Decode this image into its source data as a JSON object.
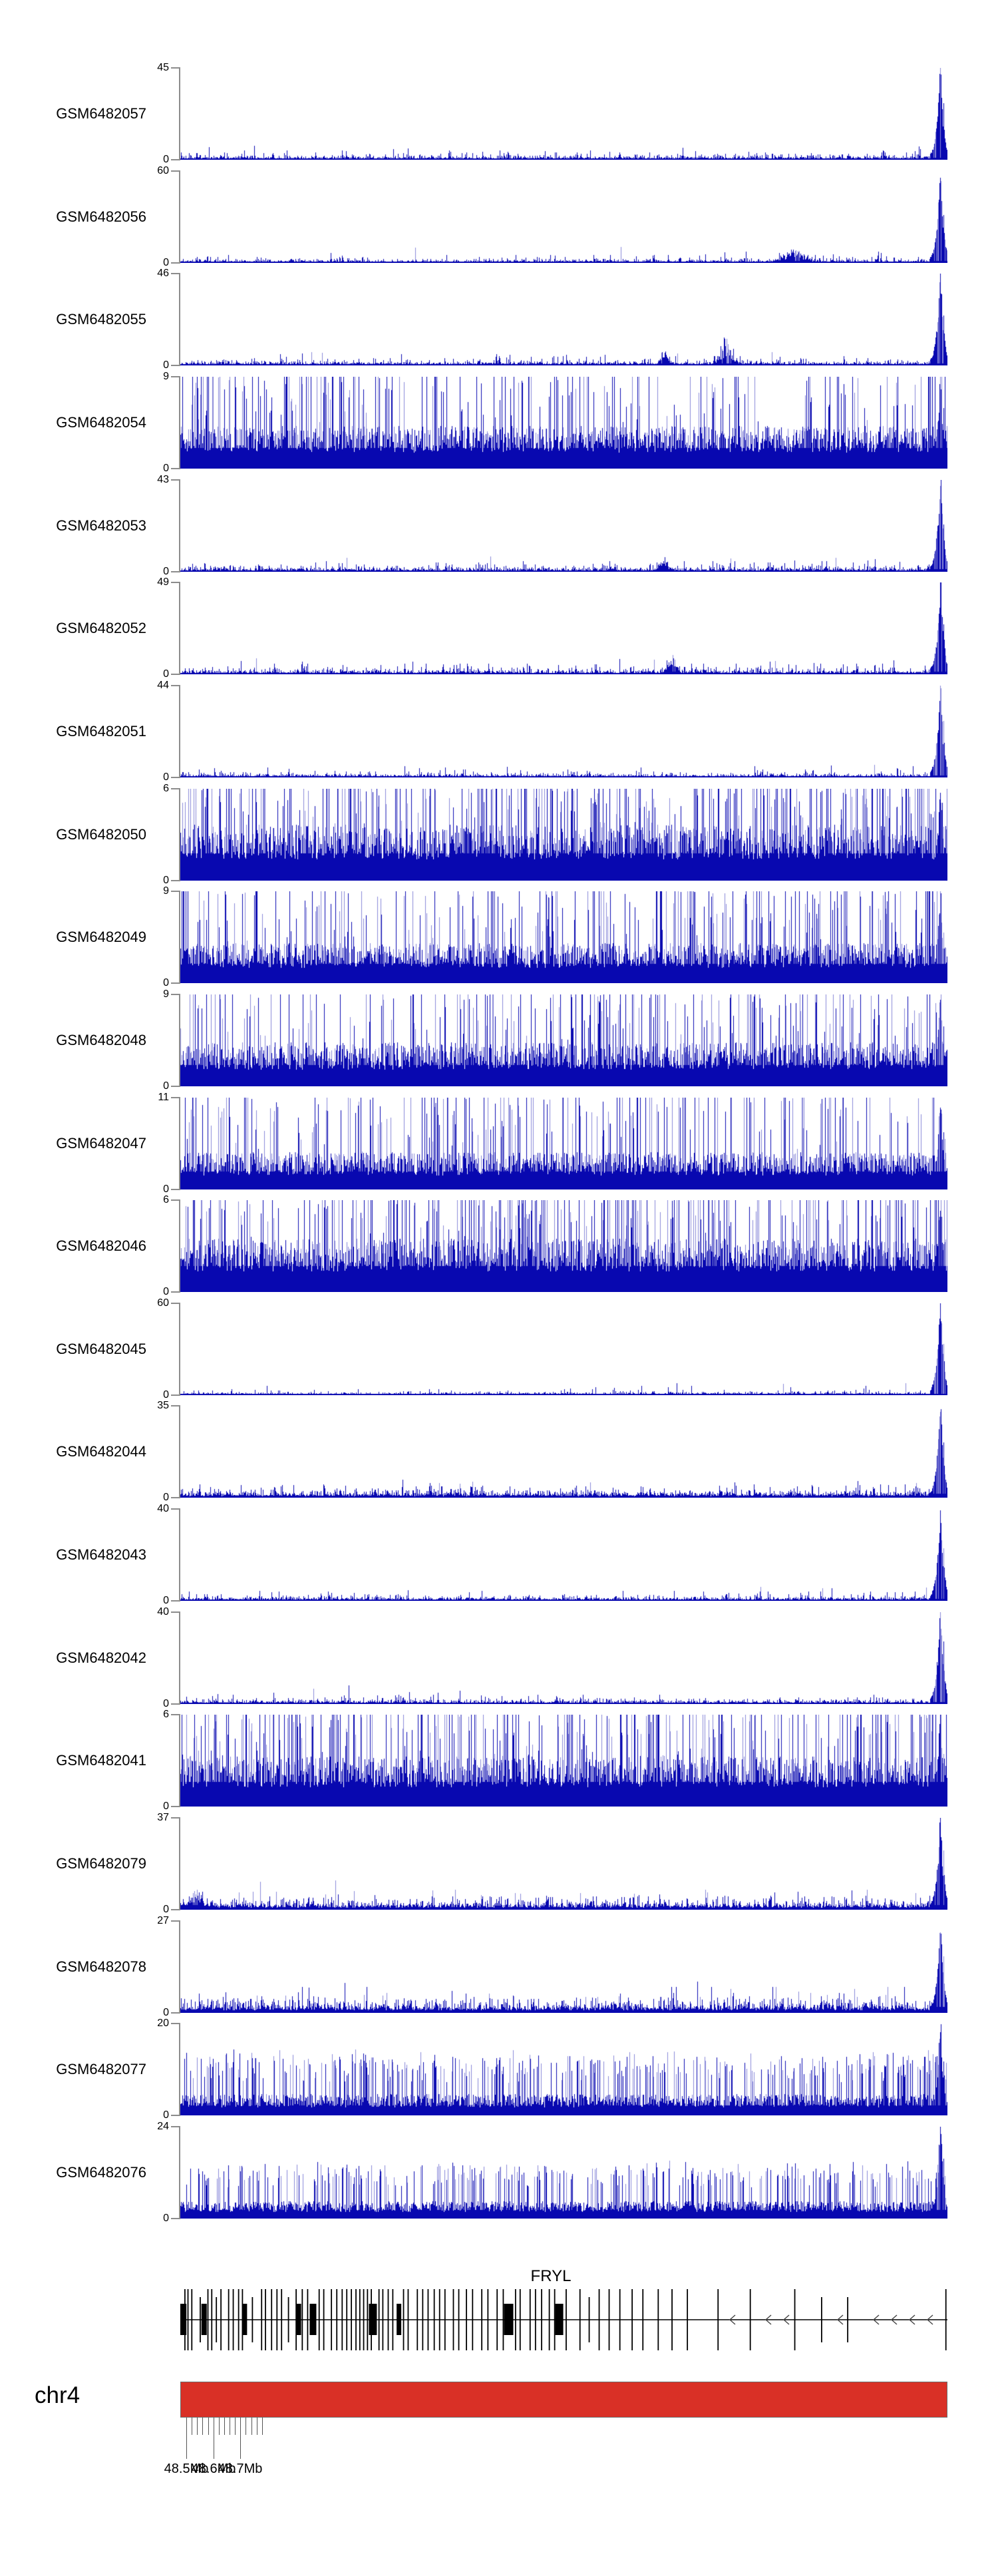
{
  "chart_data": {
    "type": "genome-coverage-tracks",
    "title": "",
    "region": {
      "chrom": "chr4",
      "start_mb": 48.49,
      "end_mb": 48.785
    },
    "y_zero_label": "0",
    "colors": {
      "coverage_dark": "#0808b0",
      "coverage_light": "#8888d8",
      "axis_gray": "#8c8c8c",
      "ideogram_red": "#d93026",
      "tick_color": "#555555",
      "gene_black": "#000000"
    },
    "tracks": [
      {
        "label": "GSM6482057",
        "ymax": 45,
        "pattern": "peak",
        "base": 0.03,
        "bumps": []
      },
      {
        "label": "GSM6482056",
        "ymax": 60,
        "pattern": "peak",
        "base": 0.025,
        "bumps": [
          [
            0.8,
            0.1,
            14
          ]
        ]
      },
      {
        "label": "GSM6482055",
        "ymax": 46,
        "pattern": "peak",
        "base": 0.03,
        "bumps": [
          [
            0.63,
            0.13,
            5
          ],
          [
            0.71,
            0.22,
            7
          ]
        ]
      },
      {
        "label": "GSM6482054",
        "ymax": 9,
        "pattern": "dense",
        "mean": 0.32,
        "spike_p": 0.2,
        "spike_max": 1.0
      },
      {
        "label": "GSM6482053",
        "ymax": 43,
        "pattern": "peak",
        "base": 0.035,
        "bumps": [
          [
            0.63,
            0.1,
            6
          ]
        ]
      },
      {
        "label": "GSM6482052",
        "ymax": 49,
        "pattern": "peak",
        "base": 0.035,
        "bumps": [
          [
            0.64,
            0.12,
            6
          ]
        ]
      },
      {
        "label": "GSM6482051",
        "ymax": 44,
        "pattern": "peak",
        "base": 0.025,
        "bumps": []
      },
      {
        "label": "GSM6482050",
        "ymax": 6,
        "pattern": "dense",
        "mean": 0.42,
        "spike_p": 0.25,
        "spike_max": 1.0
      },
      {
        "label": "GSM6482049",
        "ymax": 9,
        "pattern": "dense",
        "mean": 0.3,
        "spike_p": 0.2,
        "spike_max": 1.0
      },
      {
        "label": "GSM6482048",
        "ymax": 9,
        "pattern": "dense",
        "mean": 0.33,
        "spike_p": 0.2,
        "spike_max": 1.0
      },
      {
        "label": "GSM6482047",
        "ymax": 11,
        "pattern": "dense",
        "mean": 0.28,
        "spike_p": 0.18,
        "spike_max": 1.0
      },
      {
        "label": "GSM6482046",
        "ymax": 6,
        "pattern": "dense",
        "mean": 0.4,
        "spike_p": 0.25,
        "spike_max": 1.0
      },
      {
        "label": "GSM6482045",
        "ymax": 60,
        "pattern": "peak",
        "base": 0.02,
        "bumps": []
      },
      {
        "label": "GSM6482044",
        "ymax": 35,
        "pattern": "peak",
        "base": 0.05,
        "bumps": []
      },
      {
        "label": "GSM6482043",
        "ymax": 40,
        "pattern": "peak",
        "base": 0.03,
        "bumps": []
      },
      {
        "label": "GSM6482042",
        "ymax": 40,
        "pattern": "peak",
        "base": 0.03,
        "bumps": []
      },
      {
        "label": "GSM6482041",
        "ymax": 6,
        "pattern": "dense",
        "mean": 0.38,
        "spike_p": 0.25,
        "spike_max": 1.0
      },
      {
        "label": "GSM6482079",
        "ymax": 37,
        "pattern": "peak",
        "base": 0.065,
        "bumps": [
          [
            0.02,
            0.12,
            8
          ]
        ]
      },
      {
        "label": "GSM6482078",
        "ymax": 27,
        "pattern": "peak",
        "base": 0.085,
        "bumps": []
      },
      {
        "label": "GSM6482077",
        "ymax": 20,
        "pattern": "mid",
        "mean": 0.16,
        "spike_p": 0.3,
        "spike_max": 0.5
      },
      {
        "label": "GSM6482076",
        "ymax": 24,
        "pattern": "mid",
        "mean": 0.13,
        "spike_p": 0.25,
        "spike_max": 0.45
      }
    ],
    "gene": {
      "name": "FRYL",
      "strand": "-",
      "exon_boxes": [
        {
          "f": 0.001,
          "w": 16
        },
        {
          "f": 0.031,
          "w": 8
        },
        {
          "f": 0.084,
          "w": 7
        },
        {
          "f": 0.154,
          "w": 8
        },
        {
          "f": 0.173,
          "w": 10
        },
        {
          "f": 0.251,
          "w": 12
        },
        {
          "f": 0.285,
          "w": 7
        },
        {
          "f": 0.428,
          "w": 14
        },
        {
          "f": 0.494,
          "w": 12
        }
      ],
      "exon_lines": [
        {
          "f": 0.006,
          "t": "L"
        },
        {
          "f": 0.01,
          "t": "L"
        },
        {
          "f": 0.015,
          "t": "L"
        },
        {
          "f": 0.026,
          "t": "l"
        },
        {
          "f": 0.036,
          "t": "L"
        },
        {
          "f": 0.041,
          "t": "L"
        },
        {
          "f": 0.047,
          "t": "l"
        },
        {
          "f": 0.053,
          "t": "L"
        },
        {
          "f": 0.063,
          "t": "L"
        },
        {
          "f": 0.069,
          "t": "L"
        },
        {
          "f": 0.076,
          "t": "L"
        },
        {
          "f": 0.081,
          "t": "L"
        },
        {
          "f": 0.094,
          "t": "l"
        },
        {
          "f": 0.106,
          "t": "L"
        },
        {
          "f": 0.111,
          "t": "L"
        },
        {
          "f": 0.119,
          "t": "L"
        },
        {
          "f": 0.126,
          "t": "L"
        },
        {
          "f": 0.132,
          "t": "L"
        },
        {
          "f": 0.141,
          "t": "l"
        },
        {
          "f": 0.151,
          "t": "L"
        },
        {
          "f": 0.159,
          "t": "L"
        },
        {
          "f": 0.166,
          "t": "L"
        },
        {
          "f": 0.181,
          "t": "L"
        },
        {
          "f": 0.187,
          "t": "L"
        },
        {
          "f": 0.197,
          "t": "L"
        },
        {
          "f": 0.204,
          "t": "L"
        },
        {
          "f": 0.211,
          "t": "L"
        },
        {
          "f": 0.217,
          "t": "L"
        },
        {
          "f": 0.223,
          "t": "L"
        },
        {
          "f": 0.229,
          "t": "L"
        },
        {
          "f": 0.234,
          "t": "L"
        },
        {
          "f": 0.239,
          "t": "L"
        },
        {
          "f": 0.244,
          "t": "L"
        },
        {
          "f": 0.249,
          "t": "L"
        },
        {
          "f": 0.259,
          "t": "L"
        },
        {
          "f": 0.264,
          "t": "L"
        },
        {
          "f": 0.271,
          "t": "L"
        },
        {
          "f": 0.277,
          "t": "L"
        },
        {
          "f": 0.291,
          "t": "L"
        },
        {
          "f": 0.297,
          "t": "L"
        },
        {
          "f": 0.309,
          "t": "L"
        },
        {
          "f": 0.316,
          "t": "L"
        },
        {
          "f": 0.323,
          "t": "L"
        },
        {
          "f": 0.331,
          "t": "L"
        },
        {
          "f": 0.338,
          "t": "L"
        },
        {
          "f": 0.345,
          "t": "L"
        },
        {
          "f": 0.356,
          "t": "L"
        },
        {
          "f": 0.363,
          "t": "L"
        },
        {
          "f": 0.373,
          "t": "L"
        },
        {
          "f": 0.381,
          "t": "L"
        },
        {
          "f": 0.393,
          "t": "L"
        },
        {
          "f": 0.401,
          "t": "L"
        },
        {
          "f": 0.413,
          "t": "L"
        },
        {
          "f": 0.421,
          "t": "L"
        },
        {
          "f": 0.437,
          "t": "L"
        },
        {
          "f": 0.443,
          "t": "L"
        },
        {
          "f": 0.456,
          "t": "L"
        },
        {
          "f": 0.463,
          "t": "L"
        },
        {
          "f": 0.471,
          "t": "L"
        },
        {
          "f": 0.481,
          "t": "L"
        },
        {
          "f": 0.488,
          "t": "L"
        },
        {
          "f": 0.503,
          "t": "L"
        },
        {
          "f": 0.521,
          "t": "L"
        },
        {
          "f": 0.533,
          "t": "l"
        },
        {
          "f": 0.546,
          "t": "L"
        },
        {
          "f": 0.559,
          "t": "L"
        },
        {
          "f": 0.573,
          "t": "L"
        },
        {
          "f": 0.589,
          "t": "L"
        },
        {
          "f": 0.603,
          "t": "L"
        },
        {
          "f": 0.623,
          "t": "L"
        },
        {
          "f": 0.641,
          "t": "L"
        },
        {
          "f": 0.661,
          "t": "L"
        },
        {
          "f": 0.701,
          "t": "L"
        },
        {
          "f": 0.743,
          "t": "L"
        },
        {
          "f": 0.801,
          "t": "L"
        },
        {
          "f": 0.836,
          "t": "l"
        },
        {
          "f": 0.87,
          "t": "l"
        },
        {
          "f": 0.998,
          "t": "L"
        }
      ]
    },
    "ideogram": {
      "label": "chr4",
      "color": "#d93026"
    },
    "axis": {
      "minor_tick_interval_mb": 0.02,
      "tick_values_mb": [
        48.5,
        48.52,
        48.54,
        48.56,
        48.58,
        48.6,
        48.62,
        48.64,
        48.66,
        48.68,
        48.7,
        48.72,
        48.74,
        48.76,
        48.78
      ],
      "major_ticks": [
        {
          "value_mb": 48.5,
          "label": "48.5Mb"
        },
        {
          "value_mb": 48.6,
          "label": "48.6Mb"
        },
        {
          "value_mb": 48.7,
          "label": "48.7Mb"
        }
      ]
    }
  }
}
